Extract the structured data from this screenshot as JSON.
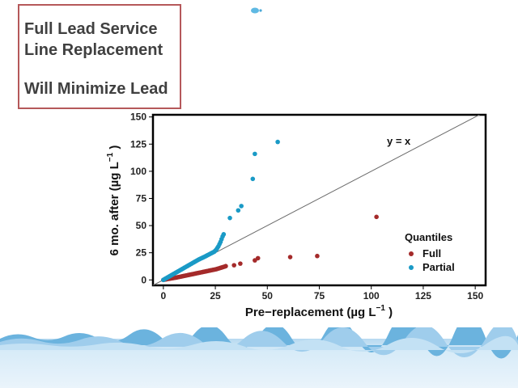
{
  "slide": {
    "title_lines": [
      "Full Lead Service",
      "Line Replacement",
      "Will Minimize Lead"
    ]
  },
  "colors": {
    "full": "#a42a2a",
    "partial": "#1a9ac6",
    "title_border": "#b5585a",
    "water": "#cfe6f5"
  },
  "chart_data": {
    "type": "scatter",
    "xlabel": "Pre−replacement (µg L",
    "xlabel_sup": "−1",
    "xlabel_tail": " )",
    "ylabel": "6 mo. after (µg L",
    "ylabel_sup": "−1",
    "ylabel_tail": " )",
    "xlim": [
      -5,
      155
    ],
    "ylim": [
      -5,
      152
    ],
    "xticks": [
      0,
      25,
      50,
      75,
      100,
      125,
      150
    ],
    "yticks": [
      0,
      25,
      50,
      75,
      100,
      125,
      150
    ],
    "grid": false,
    "reference_line": {
      "label": "y = x",
      "slope": 1,
      "intercept": 0
    },
    "legend": {
      "title": "Quantiles",
      "placement": "bottom-right"
    },
    "series": [
      {
        "name": "Full",
        "color": "#a42a2a",
        "x": [
          0,
          0.5,
          1,
          1.5,
          2,
          2.5,
          3,
          3.5,
          4,
          4.5,
          5,
          5.5,
          6,
          6.5,
          7,
          7.5,
          8,
          8.5,
          9,
          9.5,
          10,
          10.5,
          11,
          11.5,
          12,
          12.5,
          13,
          13.5,
          14,
          14.5,
          15,
          15.5,
          16,
          16.5,
          17,
          17.5,
          18,
          18.5,
          19,
          19.5,
          20,
          20.5,
          21,
          21.5,
          22,
          22.5,
          23,
          23.5,
          24,
          24.5,
          25,
          25.5,
          26,
          26.5,
          27,
          27.5,
          28,
          28.5,
          29,
          29.5,
          30,
          34,
          37,
          44,
          45.5,
          61,
          74,
          102.5
        ],
        "y": [
          0,
          0.2,
          0.4,
          0.6,
          0.8,
          1,
          1.1,
          1.3,
          1.5,
          1.6,
          1.8,
          2,
          2.1,
          2.3,
          2.5,
          2.7,
          2.9,
          3.1,
          3.3,
          3.5,
          3.7,
          3.9,
          4.1,
          4.3,
          4.5,
          4.7,
          4.9,
          5.1,
          5.3,
          5.5,
          5.7,
          5.9,
          6.1,
          6.3,
          6.5,
          6.7,
          6.9,
          7.1,
          7.3,
          7.5,
          7.7,
          7.9,
          8.1,
          8.3,
          8.5,
          8.7,
          8.9,
          9.1,
          9.3,
          9.5,
          9.7,
          9.9,
          10.2,
          10.5,
          10.8,
          11.1,
          11.4,
          11.7,
          12,
          12.3,
          12.7,
          13.5,
          15,
          18,
          20,
          21,
          22,
          58
        ]
      },
      {
        "name": "Partial",
        "color": "#1a9ac6",
        "x": [
          0,
          0.5,
          1,
          1.5,
          2,
          2.5,
          3,
          3.5,
          4,
          4.5,
          5,
          5.5,
          6,
          6.5,
          7,
          7.5,
          8,
          8.5,
          9,
          9.5,
          10,
          10.5,
          11,
          11.5,
          12,
          12.5,
          13,
          13.5,
          14,
          14.5,
          15,
          15.5,
          16,
          16.5,
          17,
          17.5,
          18,
          18.5,
          19,
          19.5,
          20,
          20.5,
          21,
          21.5,
          22,
          22.5,
          23,
          23.5,
          24,
          24.5,
          25,
          25.5,
          26,
          26.5,
          27,
          27.5,
          28,
          28.5,
          29,
          32,
          36,
          37.5,
          43,
          44,
          55
        ],
        "y": [
          0,
          0.6,
          1.2,
          1.7,
          2.3,
          2.8,
          3.4,
          3.9,
          4.5,
          5,
          5.6,
          6.1,
          6.7,
          7.2,
          7.8,
          8.3,
          8.9,
          9.4,
          10,
          10.5,
          11.1,
          11.6,
          12.2,
          12.7,
          13.3,
          13.8,
          14.4,
          14.9,
          15.5,
          16,
          16.6,
          17.1,
          17.7,
          18.2,
          18.8,
          19.2,
          19.7,
          20.1,
          20.6,
          21,
          21.5,
          22,
          22.5,
          23,
          23.5,
          24,
          24.5,
          25,
          25.5,
          26,
          27,
          28,
          29.5,
          31,
          33,
          35,
          37.5,
          40,
          42,
          57,
          64,
          68,
          93,
          116,
          127
        ]
      }
    ]
  }
}
